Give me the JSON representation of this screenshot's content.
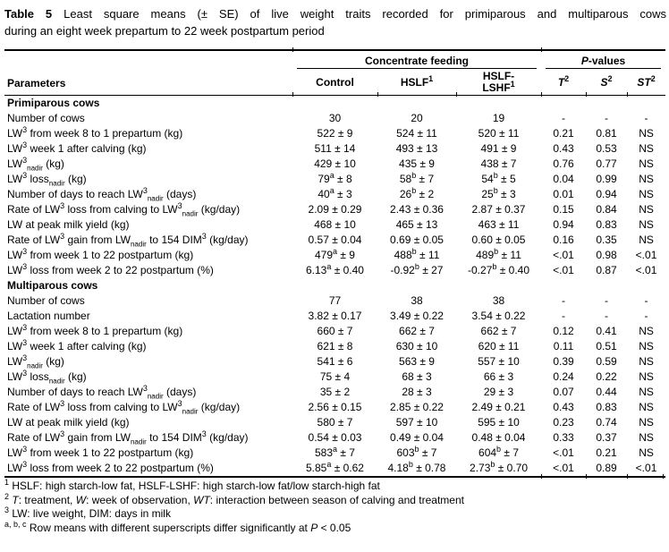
{
  "title": {
    "prefix": "Table 5",
    "line1": "Least square means (± SE) of live weight traits recorded for primiparous and multiparous cows",
    "line2": "during an eight week prepartum to 22 week postpartum period"
  },
  "table": {
    "param_header": "Parameters",
    "col_groups": [
      {
        "label": "Concentrate feeding"
      },
      {
        "label": "*P*-values"
      }
    ],
    "columns": [
      "Control",
      "HSLF^{1}",
      "HSLF-\nLSHF^{1}",
      "*T*^{2}",
      "*S*^{2}",
      "*ST*^{2}"
    ],
    "sections": [
      {
        "label": "Primiparous cows",
        "rows": [
          {
            "param": "Number of cows",
            "values": [
              "30",
              "20",
              "19",
              "-",
              "-",
              "-"
            ]
          },
          {
            "param": "LW^{3} from week 8 to 1 prepartum (kg)",
            "values": [
              "522 ± 9",
              "524 ± 11",
              "520 ± 11",
              "0.21",
              "0.81",
              "NS"
            ]
          },
          {
            "param": "LW^{3} week 1 after calving (kg)",
            "values": [
              "511 ± 14",
              "493 ± 13",
              "491 ± 9",
              "0.43",
              "0.53",
              "NS"
            ]
          },
          {
            "param": "LW^{3}_{nadir} (kg)",
            "values": [
              "429 ± 10",
              "435 ± 9",
              "438 ± 7",
              "0.76",
              "0.77",
              "NS"
            ]
          },
          {
            "param": "LW^{3} loss_{nadir} (kg)",
            "values": [
              "79^{a} ± 8",
              "58^{b} ± 7",
              "54^{b} ± 5",
              "0.04",
              "0.99",
              "NS"
            ]
          },
          {
            "param": "Number of days to reach LW^{3}_{nadir} (days)",
            "values": [
              "40^{a} ± 3",
              "26^{b} ± 2",
              "25^{b} ± 3",
              "0.01",
              "0.94",
              "NS"
            ]
          },
          {
            "param": "Rate of LW^{3} loss from calving to LW^{3}_{nadir} (kg/day)",
            "values": [
              "2.09 ± 0.29",
              "2.43 ± 0.36",
              "2.87 ± 0.37",
              "0.15",
              "0.84",
              "NS"
            ]
          },
          {
            "param": "LW at peak milk yield (kg)",
            "values": [
              "468 ± 10",
              "465 ± 13",
              "463 ± 11",
              "0.94",
              "0.83",
              "NS"
            ]
          },
          {
            "param": "Rate of LW^{3} gain from LW_{nadir} to 154 DIM^{3} (kg/day)",
            "values": [
              "0.57 ± 0.04",
              "0.69 ± 0.05",
              "0.60 ± 0.05",
              "0.16",
              "0.35",
              "NS"
            ]
          },
          {
            "param": "LW^{3} from week 1 to 22 postpartum (kg)",
            "values": [
              "479^{a} ± 9",
              "488^{b} ± 11",
              "489^{b} ± 11",
              "<.01",
              "0.98",
              "<.01"
            ]
          },
          {
            "param": "LW^{3} loss from week 2 to 22 postpartum (%)",
            "values": [
              "6.13^{a} ± 0.40",
              "-0.92^{b} ± 27",
              "-0.27^{b} ± 0.40",
              "<.01",
              "0.87",
              "<.01"
            ]
          }
        ]
      },
      {
        "label": "Multiparous cows",
        "rows": [
          {
            "param": "Number of cows",
            "values": [
              "77",
              "38",
              "38",
              "-",
              "-",
              "-"
            ]
          },
          {
            "param": "Lactation number",
            "values": [
              "3.82 ± 0.17",
              "3.49 ± 0.22",
              "3.54 ± 0.22",
              "-",
              "-",
              "-"
            ]
          },
          {
            "param": "LW^{3} from week 8 to 1 prepartum (kg)",
            "values": [
              "660 ± 7",
              "662 ± 7",
              "662 ± 7",
              "0.12",
              "0.41",
              "NS"
            ]
          },
          {
            "param": "LW^{3} week 1 after calving (kg)",
            "values": [
              "621 ± 8",
              "630 ± 10",
              "620 ± 11",
              "0.11",
              "0.51",
              "NS"
            ]
          },
          {
            "param": "LW^{3}_{nadir} (kg)",
            "values": [
              "541 ± 6",
              "563 ± 9",
              "557 ± 10",
              "0.39",
              "0.59",
              "NS"
            ]
          },
          {
            "param": "LW^{3} loss_{nadir} (kg)",
            "values": [
              "75 ± 4",
              "68 ± 3",
              "66 ± 3",
              "0.24",
              "0.22",
              "NS"
            ]
          },
          {
            "param": "Number of days to reach LW^{3}_{nadir} (days)",
            "values": [
              "35 ± 2",
              "28 ± 3",
              "29 ± 3",
              "0.07",
              "0.44",
              "NS"
            ]
          },
          {
            "param": "Rate of LW^{3} loss from calving to LW^{3}_{nadir} (kg/day)",
            "values": [
              "2.56 ± 0.15",
              "2.85 ± 0.22",
              "2.49 ± 0.21",
              "0.43",
              "0.83",
              "NS"
            ]
          },
          {
            "param": "LW at peak milk yield (kg)",
            "values": [
              "580 ± 7",
              "597 ± 10",
              "595 ± 10",
              "0.23",
              "0.74",
              "NS"
            ]
          },
          {
            "param": "Rate of LW^{3} gain from LW_{nadir} to 154 DIM^{3} (kg/day)",
            "values": [
              "0.54 ± 0.03",
              "0.49 ± 0.04",
              "0.48 ± 0.04",
              "0.33",
              "0.37",
              "NS"
            ]
          },
          {
            "param": "LW^{3} from week 1 to 22 postpartum (kg)",
            "values": [
              "583^{a} ± 7",
              "603^{b} ± 7",
              "604^{b} ± 7",
              "<.01",
              "0.21",
              "NS"
            ]
          },
          {
            "param": "LW^{3} loss from week 2 to 22 postpartum (%)",
            "values": [
              "5.85^{a} ± 0.62",
              "4.18^{b} ± 0.78",
              "2.73^{b} ± 0.70",
              "<.01",
              "0.89",
              "<.01"
            ]
          }
        ]
      }
    ]
  },
  "footnotes": [
    {
      "marker": "1",
      "text": "HSLF: high starch-low fat, HSLF-LSHF: high starch-low fat/low starch-high fat"
    },
    {
      "marker": "2",
      "text": "*T*: treatment, *W*: week of observation, *WT*: interaction between season of calving and treatment"
    },
    {
      "marker": "3",
      "text": "LW: live weight, DIM: days in milk"
    },
    {
      "marker": "a, b, c",
      "text": "Row means with different superscripts differ significantly at *P* < 0.05"
    }
  ]
}
